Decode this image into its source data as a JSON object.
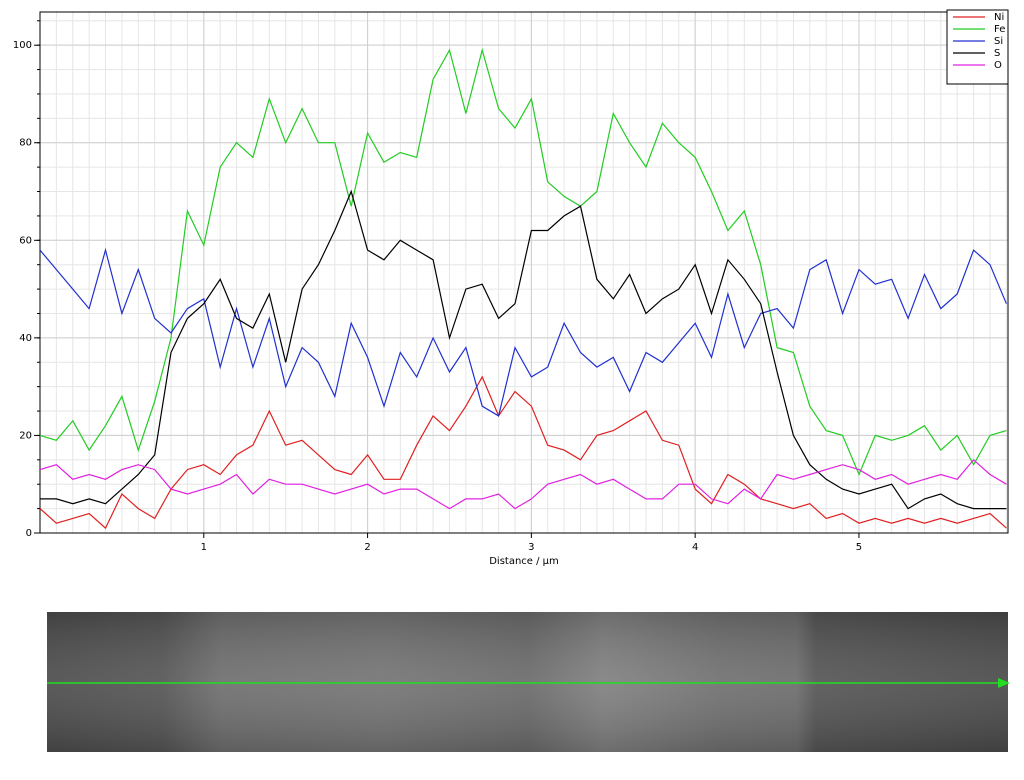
{
  "chart_data": {
    "type": "line",
    "x_label": "Distance / µm",
    "x": [
      0,
      0.1,
      0.2,
      0.3,
      0.4,
      0.5,
      0.6,
      0.7,
      0.8,
      0.9,
      1.0,
      1.1,
      1.2,
      1.3,
      1.4,
      1.5,
      1.6,
      1.7,
      1.8,
      1.9,
      2.0,
      2.1,
      2.2,
      2.3,
      2.4,
      2.5,
      2.6,
      2.7,
      2.8,
      2.9,
      3.0,
      3.1,
      3.2,
      3.3,
      3.4,
      3.5,
      3.6,
      3.7,
      3.8,
      3.9,
      4.0,
      4.1,
      4.2,
      4.3,
      4.4,
      4.5,
      4.6,
      4.7,
      4.8,
      4.9,
      5.0,
      5.1,
      5.2,
      5.3,
      5.4,
      5.5,
      5.6,
      5.7,
      5.8,
      5.9
    ],
    "series": [
      {
        "name": "Ni",
        "color": "#e02020",
        "values": [
          5,
          2,
          3,
          4,
          1,
          8,
          5,
          3,
          9,
          13,
          14,
          12,
          16,
          18,
          25,
          18,
          19,
          16,
          13,
          12,
          16,
          11,
          11,
          18,
          24,
          21,
          26,
          32,
          24,
          29,
          26,
          18,
          17,
          15,
          20,
          21,
          23,
          25,
          19,
          18,
          9,
          6,
          12,
          10,
          7,
          6,
          5,
          6,
          3,
          4,
          2,
          3,
          2,
          3,
          2,
          3,
          2,
          3,
          4,
          1
        ]
      },
      {
        "name": "Fe",
        "color": "#22cc22",
        "values": [
          20,
          19,
          23,
          17,
          22,
          28,
          17,
          27,
          40,
          66,
          59,
          75,
          80,
          77,
          89,
          80,
          87,
          80,
          80,
          67,
          82,
          76,
          78,
          77,
          93,
          99,
          86,
          99,
          87,
          83,
          89,
          72,
          69,
          67,
          70,
          86,
          80,
          75,
          84,
          80,
          77,
          70,
          62,
          66,
          55,
          38,
          37,
          26,
          21,
          20,
          12,
          20,
          19,
          20,
          22,
          17,
          20,
          14,
          20,
          21
        ]
      },
      {
        "name": "Si",
        "color": "#2030d0",
        "values": [
          58,
          54,
          50,
          46,
          58,
          45,
          54,
          44,
          41,
          46,
          48,
          34,
          46,
          34,
          44,
          30,
          38,
          35,
          28,
          43,
          36,
          26,
          37,
          32,
          40,
          33,
          38,
          26,
          24,
          38,
          32,
          34,
          43,
          37,
          34,
          36,
          29,
          37,
          35,
          39,
          43,
          36,
          49,
          38,
          45,
          46,
          42,
          54,
          56,
          45,
          54,
          51,
          52,
          44,
          53,
          46,
          49,
          58,
          55,
          47
        ]
      },
      {
        "name": "S",
        "color": "#000000",
        "values": [
          7,
          7,
          6,
          7,
          6,
          9,
          12,
          16,
          37,
          44,
          47,
          52,
          44,
          42,
          49,
          35,
          50,
          55,
          62,
          70,
          58,
          56,
          60,
          58,
          56,
          40,
          50,
          51,
          44,
          47,
          62,
          62,
          65,
          67,
          52,
          48,
          53,
          45,
          48,
          50,
          55,
          45,
          56,
          52,
          47,
          33,
          20,
          14,
          11,
          9,
          8,
          9,
          10,
          5,
          7,
          8,
          6,
          5,
          5,
          5
        ]
      },
      {
        "name": "O",
        "color": "#e020e0",
        "values": [
          13,
          14,
          11,
          12,
          11,
          13,
          14,
          13,
          9,
          8,
          9,
          10,
          12,
          8,
          11,
          10,
          10,
          9,
          8,
          9,
          10,
          8,
          9,
          9,
          7,
          5,
          7,
          7,
          8,
          5,
          7,
          10,
          11,
          12,
          10,
          11,
          9,
          7,
          7,
          10,
          10,
          7,
          6,
          9,
          7,
          12,
          11,
          12,
          13,
          14,
          13,
          11,
          12,
          10,
          11,
          12,
          11,
          15,
          12,
          10
        ]
      }
    ],
    "xlim": [
      0,
      5.91
    ],
    "xticks": [
      1,
      2,
      3,
      4,
      5
    ],
    "ylim": [
      0,
      106.8
    ],
    "yticks": [
      0,
      20,
      40,
      60,
      80,
      100
    ],
    "grid": true,
    "minor_grid": true,
    "legend": "upper right"
  }
}
